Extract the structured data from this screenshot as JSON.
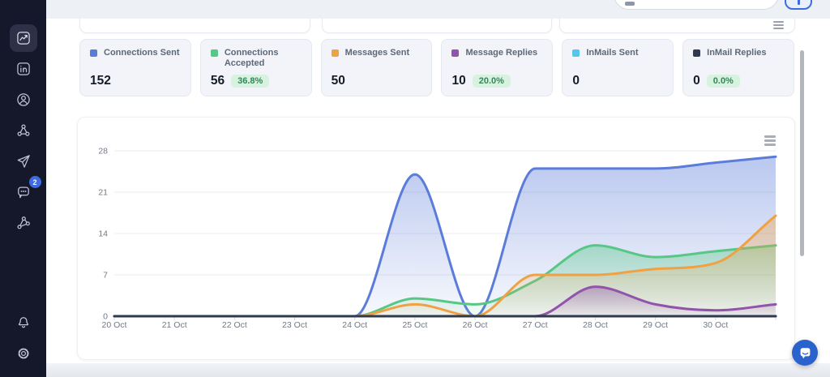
{
  "sidebar": {
    "notification_count": "2",
    "items": [
      {
        "id": "analytics",
        "icon": "chart-trend-icon",
        "active": true
      },
      {
        "id": "linkedin",
        "icon": "linkedin-icon",
        "active": false
      },
      {
        "id": "profile",
        "icon": "user-circle-icon",
        "active": false
      },
      {
        "id": "network",
        "icon": "share-nodes-icon",
        "active": false
      },
      {
        "id": "outreach",
        "icon": "send-icon",
        "active": false
      },
      {
        "id": "inbox",
        "icon": "chat-bubble-icon",
        "active": false,
        "badge": "2"
      },
      {
        "id": "integrations",
        "icon": "graph-nodes-icon",
        "active": false
      }
    ],
    "bottom_items": [
      {
        "id": "notifications",
        "icon": "bell-icon"
      },
      {
        "id": "settings",
        "icon": "gear-icon"
      }
    ]
  },
  "stats": {
    "cards": [
      {
        "label": "Connections Sent",
        "value": "152",
        "color": "#5b7cd9"
      },
      {
        "label": "Connections Accepted",
        "value": "56",
        "badge": "36.8%",
        "color": "#57c785"
      },
      {
        "label": "Messages Sent",
        "value": "50",
        "color": "#efa143"
      },
      {
        "label": "Message Replies",
        "value": "10",
        "badge": "20.0%",
        "color": "#9153ab"
      },
      {
        "label": "InMails Sent",
        "value": "0",
        "color": "#54c6e8"
      },
      {
        "label": "InMail Replies",
        "value": "0",
        "badge": "0.0%",
        "color": "#2e3b4e"
      }
    ]
  },
  "chart_data": {
    "type": "area",
    "title": "",
    "curve": "smooth",
    "grid": true,
    "legend": "hidden",
    "categories": [
      "20 Oct",
      "21 Oct",
      "22 Oct",
      "23 Oct",
      "24 Oct",
      "25 Oct",
      "26 Oct",
      "27 Oct",
      "28 Oct",
      "29 Oct",
      "30 Oct",
      ""
    ],
    "series": [
      {
        "name": "Connections Sent",
        "color": "#5b7cd9",
        "values": [
          0,
          0,
          0,
          0,
          0,
          24,
          0,
          25,
          25,
          25,
          26,
          27
        ]
      },
      {
        "name": "Connections Accepted",
        "color": "#57c785",
        "values": [
          0,
          0,
          0,
          0,
          0,
          3,
          2,
          6,
          12,
          10,
          11,
          12
        ]
      },
      {
        "name": "Messages Sent",
        "color": "#efa143",
        "values": [
          0,
          0,
          0,
          0,
          0,
          2,
          0,
          7,
          7,
          8,
          9,
          17
        ]
      },
      {
        "name": "Message Replies",
        "color": "#9153ab",
        "values": [
          0,
          0,
          0,
          0,
          0,
          0,
          0,
          0,
          5,
          2,
          1,
          2
        ]
      },
      {
        "name": "InMails Sent",
        "color": "#54c6e8",
        "values": [
          0,
          0,
          0,
          0,
          0,
          0,
          0,
          0,
          0,
          0,
          0,
          0
        ]
      },
      {
        "name": "InMail Replies",
        "color": "#2e3b4e",
        "values": [
          0,
          0,
          0,
          0,
          0,
          0,
          0,
          0,
          0,
          0,
          0,
          0
        ]
      }
    ],
    "yticks": [
      0,
      7,
      14,
      21,
      28
    ],
    "ylim": [
      0,
      28
    ]
  }
}
